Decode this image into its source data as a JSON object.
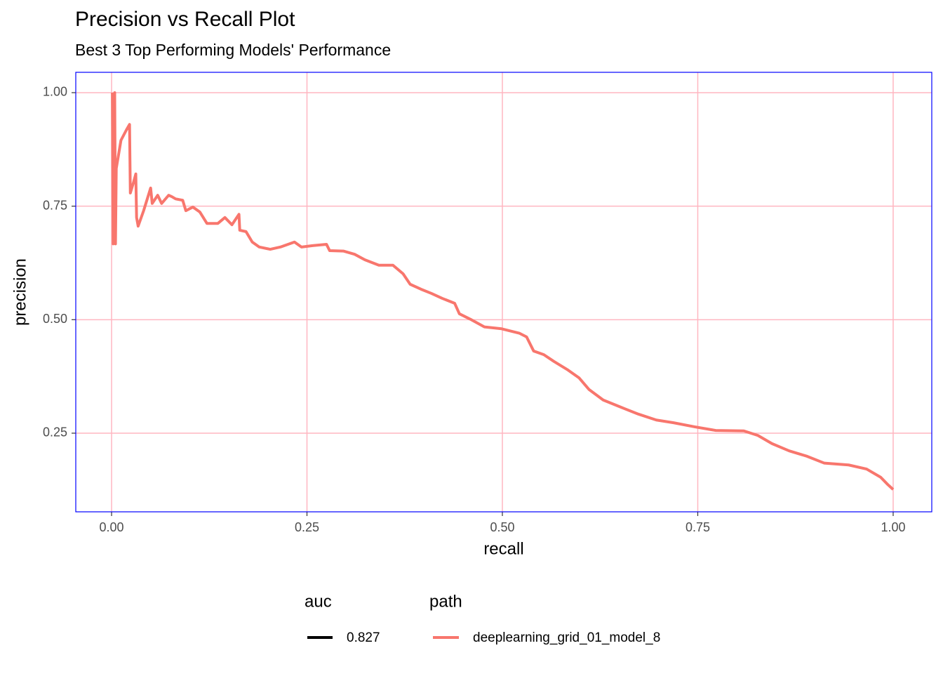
{
  "chart_data": {
    "type": "line",
    "title": "Precision vs Recall Plot",
    "subtitle": "Best 3 Top Performing Models' Performance",
    "x_label": "recall",
    "y_label": "precision",
    "xlim": [
      -0.0458,
      1.0494
    ],
    "ylim": [
      0.0768,
      1.0448
    ],
    "xticks": [
      {
        "value": 0,
        "label": "0.00"
      },
      {
        "value": 0.25,
        "label": "0.25"
      },
      {
        "value": 0.5,
        "label": "0.50"
      },
      {
        "value": 0.75,
        "label": "0.75"
      },
      {
        "value": 1,
        "label": "1.00"
      }
    ],
    "yticks": [
      {
        "value": 0.25,
        "label": "0.25"
      },
      {
        "value": 0.5,
        "label": "0.50"
      },
      {
        "value": 0.75,
        "label": "0.75"
      },
      {
        "value": 1,
        "label": "1.00"
      }
    ],
    "grid": true,
    "grid_color": "#ffb6c1",
    "panel_border_color": "#0000ff",
    "legend_position": "bottom",
    "legend_titles": [
      "auc",
      "path"
    ],
    "auc_color": "#000000",
    "x": [
      0.001,
      0.002,
      0.004,
      0.005,
      0.006,
      0.012,
      0.019,
      0.023,
      0.024,
      0.028,
      0.031,
      0.032,
      0.034,
      0.041,
      0.05,
      0.052,
      0.059,
      0.064,
      0.073,
      0.077,
      0.082,
      0.091,
      0.095,
      0.104,
      0.113,
      0.122,
      0.136,
      0.145,
      0.154,
      0.163,
      0.164,
      0.172,
      0.18,
      0.189,
      0.203,
      0.216,
      0.234,
      0.243,
      0.257,
      0.275,
      0.279,
      0.297,
      0.311,
      0.324,
      0.342,
      0.36,
      0.373,
      0.382,
      0.396,
      0.409,
      0.423,
      0.439,
      0.445,
      0.459,
      0.477,
      0.499,
      0.522,
      0.531,
      0.54,
      0.553,
      0.566,
      0.584,
      0.598,
      0.611,
      0.629,
      0.652,
      0.674,
      0.697,
      0.719,
      0.746,
      0.773,
      0.809,
      0.827,
      0.845,
      0.867,
      0.89,
      0.912,
      0.943,
      0.966,
      0.984,
      0.993,
      1.0
    ],
    "series": [
      {
        "name": "deeplearning_grid_01_model_8",
        "auc": "0.827",
        "color": "#f8766d",
        "values": [
          1.0,
          0.667,
          1.0,
          0.667,
          0.833,
          0.895,
          0.918,
          0.93,
          0.779,
          0.802,
          0.821,
          0.725,
          0.706,
          0.74,
          0.79,
          0.756,
          0.774,
          0.756,
          0.774,
          0.771,
          0.766,
          0.763,
          0.74,
          0.748,
          0.737,
          0.712,
          0.712,
          0.725,
          0.709,
          0.732,
          0.697,
          0.694,
          0.671,
          0.66,
          0.655,
          0.66,
          0.671,
          0.66,
          0.663,
          0.666,
          0.652,
          0.651,
          0.644,
          0.632,
          0.62,
          0.62,
          0.601,
          0.578,
          0.567,
          0.558,
          0.547,
          0.536,
          0.513,
          0.501,
          0.484,
          0.48,
          0.47,
          0.462,
          0.431,
          0.423,
          0.408,
          0.389,
          0.372,
          0.346,
          0.323,
          0.307,
          0.292,
          0.279,
          0.273,
          0.264,
          0.256,
          0.255,
          0.245,
          0.227,
          0.211,
          0.199,
          0.184,
          0.18,
          0.171,
          0.153,
          0.137,
          0.126
        ]
      }
    ]
  }
}
